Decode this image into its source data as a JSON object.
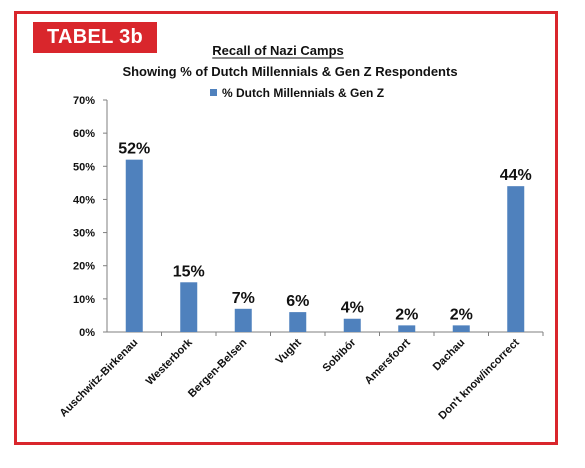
{
  "badge": "TABEL 3b",
  "colors": {
    "frame": "#d9262c",
    "bar": "#4f81bd",
    "badge_text": "#ffffff"
  },
  "chart_data": {
    "type": "bar",
    "title": "Recall of Nazi Camps",
    "subtitle": "Showing % of Dutch Millennials & Gen Z Respondents",
    "legend": {
      "position": "top",
      "entries": [
        "% Dutch Millennials & Gen Z"
      ]
    },
    "categories": [
      "Auschwitz-Birkenau",
      "Westerbork",
      "Bergen-Belsen",
      "Vught",
      "Sobibór",
      "Amersfoort",
      "Dachau",
      "Don't know/incorrect"
    ],
    "series": [
      {
        "name": "% Dutch Millennials & Gen Z",
        "values": [
          52,
          15,
          7,
          6,
          4,
          2,
          2,
          44
        ]
      }
    ],
    "data_labels": [
      "52%",
      "15%",
      "7%",
      "6%",
      "4%",
      "2%",
      "2%",
      "44%"
    ],
    "yticks": [
      "0%",
      "10%",
      "20%",
      "30%",
      "40%",
      "50%",
      "60%",
      "70%"
    ],
    "ylim": [
      0,
      70
    ],
    "grid": false
  }
}
